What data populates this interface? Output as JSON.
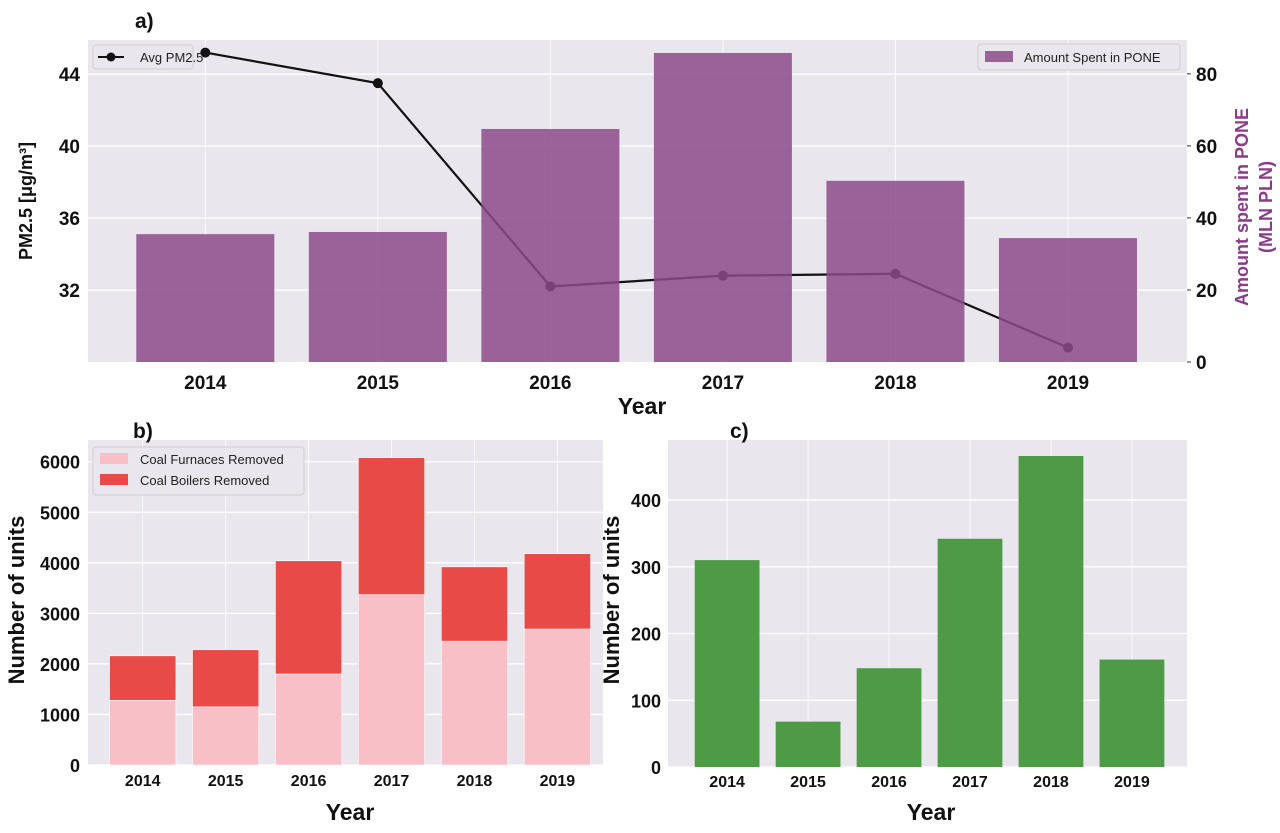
{
  "chart_data": [
    {
      "panel_label": "a)",
      "type": "bar+line",
      "categories": [
        "2014",
        "2015",
        "2016",
        "2017",
        "2018",
        "2019"
      ],
      "xlabel": "Year",
      "ylabel_left": "PM2.5 [μg/m³]",
      "ylabel_right_line1": "Amount spent in PONE",
      "ylabel_right_line2": "(MLN PLN)",
      "ylim_left": [
        28,
        45.9
      ],
      "yticks_left": [
        32,
        36,
        40,
        44
      ],
      "ylim_right": [
        0,
        89.4
      ],
      "yticks_right": [
        0,
        20,
        40,
        60,
        80
      ],
      "grid": true,
      "series": [
        {
          "name": "Avg PM2.5",
          "kind": "line",
          "axis": "left",
          "color": "#111111",
          "values": [
            45.2,
            43.5,
            32.2,
            32.8,
            32.9,
            28.8
          ],
          "legend": "top-left"
        },
        {
          "name": "Amount Spent in PONE",
          "kind": "bar",
          "axis": "right",
          "color": "#8c4a8a",
          "values": [
            35.5,
            36.1,
            64.7,
            85.8,
            50.3,
            34.4
          ],
          "legend": "top-right"
        }
      ],
      "right_label_color": "#8c3a8a"
    },
    {
      "panel_label": "b)",
      "type": "bar",
      "stacked": true,
      "categories": [
        "2014",
        "2015",
        "2016",
        "2017",
        "2018",
        "2019"
      ],
      "xlabel": "Year",
      "ylabel": "Number of units",
      "ylim": [
        0,
        6430
      ],
      "yticks": [
        0,
        1000,
        2000,
        3000,
        4000,
        5000,
        6000
      ],
      "grid": true,
      "legend": "top-left",
      "series": [
        {
          "name": "Coal Furnaces Removed",
          "color": "#f9bfc6",
          "values": [
            1280,
            1150,
            1800,
            3370,
            2450,
            2690
          ]
        },
        {
          "name": "Coal Boilers Removed",
          "color": "#e84a47",
          "values": [
            880,
            1130,
            2240,
            2710,
            1470,
            1490
          ]
        }
      ]
    },
    {
      "panel_label": "c)",
      "type": "bar",
      "categories": [
        "2014",
        "2015",
        "2016",
        "2017",
        "2018",
        "2019"
      ],
      "xlabel": "Year",
      "ylabel": "Number of units",
      "ylim": [
        0,
        490
      ],
      "yticks": [
        0,
        100,
        200,
        300,
        400
      ],
      "grid": true,
      "series": [
        {
          "color": "#4e9a47",
          "values": [
            310,
            68,
            148,
            342,
            466,
            161
          ]
        }
      ]
    }
  ]
}
